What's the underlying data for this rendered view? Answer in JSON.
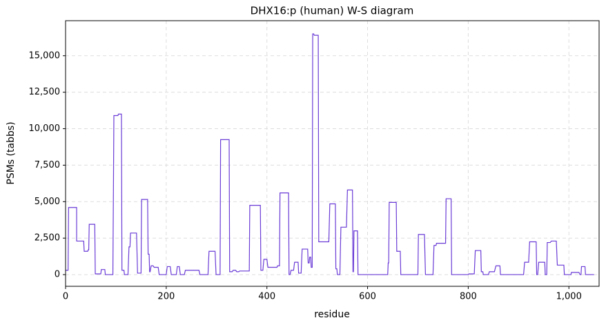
{
  "chart_data": {
    "type": "line",
    "title": "DHX16:p (human) W-S diagram",
    "x_label": "residue",
    "y_label": "PSMs (tabbs)",
    "color": "#6a3bd6",
    "grid": true,
    "xlim": [
      0,
      1060
    ],
    "ylim": [
      -800,
      17400
    ],
    "xticks": [
      0,
      200,
      400,
      600,
      800,
      {
        "value": 1000,
        "label": "1,000"
      }
    ],
    "yticks": [
      0,
      {
        "value": 2500,
        "label": "2,500"
      },
      {
        "value": 5000,
        "label": "5,000"
      },
      {
        "value": 7500,
        "label": "7,500"
      },
      {
        "value": 10000,
        "label": "10,000"
      },
      {
        "value": 12500,
        "label": "12,500"
      },
      {
        "value": 15000,
        "label": "15,000"
      }
    ],
    "x": [
      0,
      5,
      6,
      22,
      22,
      36,
      37,
      44,
      45,
      46,
      47,
      58,
      59,
      70,
      71,
      78,
      79,
      94,
      96,
      104,
      105,
      111,
      112,
      116,
      117,
      124,
      126,
      128,
      129,
      141,
      143,
      150,
      151,
      163,
      164,
      166,
      167,
      168,
      170,
      174,
      176,
      184,
      186,
      200,
      202,
      208,
      210,
      220,
      222,
      226,
      228,
      236,
      238,
      265,
      267,
      283,
      285,
      297,
      299,
      307,
      308,
      325,
      326,
      331,
      333,
      338,
      340,
      344,
      346,
      365,
      366,
      387,
      388,
      392,
      394,
      400,
      402,
      420,
      421,
      425,
      426,
      443,
      444,
      446,
      448,
      453,
      455,
      462,
      463,
      468,
      470,
      481,
      482,
      484,
      485,
      487,
      488,
      490,
      491,
      493,
      494,
      502,
      503,
      523,
      525,
      536,
      537,
      539,
      540,
      545,
      547,
      558,
      560,
      570,
      571,
      572,
      573,
      580,
      581,
      640,
      641,
      642,
      643,
      657,
      658,
      665,
      666,
      700,
      701,
      713,
      715,
      730,
      732,
      736,
      737,
      755,
      756,
      766,
      767,
      800,
      801,
      812,
      814,
      825,
      826,
      829,
      830,
      840,
      842,
      852,
      855,
      863,
      864,
      910,
      912,
      920,
      922,
      935,
      936,
      938,
      940,
      952,
      953,
      956,
      957,
      963,
      965,
      975,
      977,
      990,
      991,
      1004,
      1005,
      1020,
      1022,
      1024,
      1025,
      1032,
      1033,
      1050
    ],
    "values": [
      300,
      300,
      4600,
      4600,
      2300,
      2300,
      1600,
      1600,
      1700,
      1700,
      3450,
      3450,
      50,
      50,
      350,
      350,
      0,
      0,
      10900,
      10900,
      11000,
      11000,
      300,
      300,
      0,
      0,
      1900,
      1900,
      2850,
      2850,
      100,
      100,
      5150,
      5150,
      1400,
      1400,
      200,
      200,
      600,
      600,
      500,
      500,
      0,
      0,
      550,
      550,
      0,
      0,
      550,
      550,
      0,
      0,
      300,
      300,
      0,
      0,
      1600,
      1600,
      0,
      0,
      9250,
      9250,
      200,
      200,
      300,
      300,
      200,
      200,
      250,
      250,
      4750,
      4750,
      300,
      300,
      1050,
      1050,
      500,
      500,
      600,
      600,
      5600,
      5600,
      0,
      0,
      300,
      300,
      850,
      850,
      100,
      100,
      1750,
      1750,
      800,
      800,
      1200,
      1200,
      500,
      500,
      16500,
      16500,
      16400,
      16400,
      2250,
      2250,
      4850,
      4850,
      400,
      400,
      0,
      0,
      3250,
      3250,
      5800,
      5800,
      200,
      200,
      3000,
      3000,
      0,
      0,
      800,
      800,
      4950,
      4950,
      1600,
      1600,
      0,
      0,
      2750,
      2750,
      0,
      0,
      2000,
      2000,
      2150,
      2150,
      5200,
      5200,
      0,
      0,
      50,
      50,
      1650,
      1650,
      200,
      200,
      0,
      0,
      200,
      200,
      600,
      600,
      0,
      0,
      850,
      850,
      2250,
      2250,
      0,
      0,
      850,
      850,
      0,
      0,
      2200,
      2200,
      2300,
      2300,
      650,
      650,
      0,
      0,
      150,
      150,
      0,
      0,
      550,
      550,
      0,
      0
    ]
  }
}
